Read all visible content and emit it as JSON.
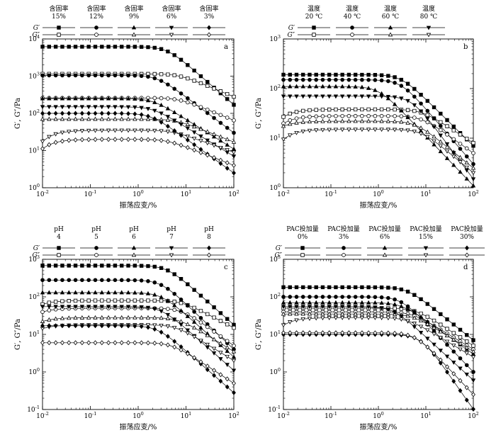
{
  "chart_data": [
    {
      "panel": "a",
      "type": "line",
      "xlabel": "振荡应变/%",
      "ylabel": "G′, G″/Pa",
      "x_scale": "log",
      "y_scale": "log",
      "xlim": [
        0.01,
        100
      ],
      "ylim": [
        1,
        10000
      ],
      "x_ticks": [
        0.01,
        0.1,
        1,
        10,
        100
      ],
      "y_ticks": [
        1,
        10,
        100,
        1000,
        10000
      ],
      "legend": {
        "position": "top",
        "row_labels": [
          "G′",
          "G″"
        ],
        "columns": [
          {
            "line1": "含固率",
            "line2": "15%"
          },
          {
            "line1": "含固率",
            "line2": "12%"
          },
          {
            "line1": "含固率",
            "line2": "9%"
          },
          {
            "line1": "含固率",
            "line2": "6%"
          },
          {
            "line1": "含固率",
            "line2": "3%"
          }
        ]
      },
      "series": [
        {
          "modulus": "G′",
          "marker": "square",
          "filled": true,
          "plateau": 6200,
          "end": 170,
          "gamma_c": 4,
          "slope": 0.6,
          "init": 0
        },
        {
          "modulus": "G″",
          "marker": "square",
          "filled": false,
          "plateau": 1150,
          "end": 280,
          "gamma_c": 7,
          "slope": 0.35,
          "init": 0
        },
        {
          "modulus": "G′",
          "marker": "circle",
          "filled": true,
          "plateau": 1050,
          "end": 30,
          "gamma_c": 2.5,
          "slope": 0.55,
          "init": 0
        },
        {
          "modulus": "G″",
          "marker": "circle",
          "filled": false,
          "plateau": 260,
          "end": 65,
          "gamma_c": 7,
          "slope": 0.35,
          "init": 0
        },
        {
          "modulus": "G′",
          "marker": "triangle",
          "filled": true,
          "plateau": 250,
          "end": 11,
          "gamma_c": 2,
          "slope": 0.55,
          "init": 0
        },
        {
          "modulus": "G″",
          "marker": "triangle",
          "filled": false,
          "plateau": 70,
          "end": 17,
          "gamma_c": 6,
          "slope": 0.35,
          "init": 0
        },
        {
          "modulus": "G′",
          "marker": "triangle-down",
          "filled": true,
          "plateau": 150,
          "end": 7,
          "gamma_c": 2,
          "slope": 0.55,
          "init": 0
        },
        {
          "modulus": "G″",
          "marker": "triangle-down",
          "filled": false,
          "plateau": 35,
          "end": 9,
          "gamma_c": 5,
          "slope": 0.35,
          "init": -0.3
        },
        {
          "modulus": "G′",
          "marker": "diamond",
          "filled": true,
          "plateau": 100,
          "end": 2.5,
          "gamma_c": 1.8,
          "slope": 0.6,
          "init": 0
        },
        {
          "modulus": "G″",
          "marker": "diamond",
          "filled": false,
          "plateau": 20,
          "end": 4,
          "gamma_c": 4,
          "slope": 0.4,
          "init": -0.25
        }
      ]
    },
    {
      "panel": "b",
      "type": "line",
      "xlabel": "振荡应变/%",
      "ylabel": "G′, G″/Pa",
      "x_scale": "log",
      "y_scale": "log",
      "xlim": [
        0.01,
        100
      ],
      "ylim": [
        1,
        1000
      ],
      "x_ticks": [
        0.01,
        0.1,
        1,
        10,
        100
      ],
      "y_ticks": [
        1,
        10,
        100,
        1000
      ],
      "legend": {
        "position": "top",
        "row_labels": [
          "G′",
          "G″"
        ],
        "columns": [
          {
            "line1": "温度",
            "line2": "20 ℃"
          },
          {
            "line1": "温度",
            "line2": "40 ℃"
          },
          {
            "line1": "温度",
            "line2": "60 ℃"
          },
          {
            "line1": "温度",
            "line2": "80 ℃"
          }
        ]
      },
      "series": [
        {
          "modulus": "G′",
          "marker": "square",
          "filled": true,
          "plateau": 190,
          "end": 7,
          "gamma_c": 3,
          "slope": 0.8,
          "init": 0
        },
        {
          "modulus": "G″",
          "marker": "square",
          "filled": false,
          "plateau": 38,
          "end": 8,
          "gamma_c": 8,
          "slope": 0.5,
          "init": -0.15
        },
        {
          "modulus": "G′",
          "marker": "circle",
          "filled": true,
          "plateau": 150,
          "end": 3,
          "gamma_c": 3,
          "slope": 0.9,
          "init": 0
        },
        {
          "modulus": "G″",
          "marker": "circle",
          "filled": false,
          "plateau": 28,
          "end": 5,
          "gamma_c": 8,
          "slope": 0.5,
          "init": -0.15
        },
        {
          "modulus": "G′",
          "marker": "triangle",
          "filled": true,
          "plateau": 110,
          "end": 1.1,
          "gamma_c": 1,
          "slope": 1.0,
          "init": 0
        },
        {
          "modulus": "G″",
          "marker": "triangle",
          "filled": false,
          "plateau": 22,
          "end": 2.5,
          "gamma_c": 6,
          "slope": 0.5,
          "init": -0.1
        },
        {
          "modulus": "G′",
          "marker": "triangle-down",
          "filled": true,
          "plateau": 70,
          "end": 1.5,
          "gamma_c": 5,
          "slope": 0.9,
          "init": 0
        },
        {
          "modulus": "G″",
          "marker": "triangle-down",
          "filled": false,
          "plateau": 15,
          "end": 2,
          "gamma_c": 8,
          "slope": 0.5,
          "init": -0.2
        }
      ]
    },
    {
      "panel": "c",
      "type": "line",
      "xlabel": "振荡应变/%",
      "ylabel": "G′, G″/Pa",
      "x_scale": "log",
      "y_scale": "log",
      "xlim": [
        0.01,
        100
      ],
      "ylim": [
        0.1,
        1000
      ],
      "x_ticks": [
        0.01,
        0.1,
        1,
        10,
        100
      ],
      "y_ticks": [
        0.1,
        1,
        10,
        100,
        1000
      ],
      "legend": {
        "position": "top",
        "row_labels": [
          "G′",
          "G″"
        ],
        "columns": [
          {
            "line1": "pH",
            "line2": "4"
          },
          {
            "line1": "pH",
            "line2": "5"
          },
          {
            "line1": "pH",
            "line2": "6"
          },
          {
            "line1": "pH",
            "line2": "7"
          },
          {
            "line1": "pH",
            "line2": "8"
          }
        ]
      },
      "series": [
        {
          "modulus": "G′",
          "marker": "square",
          "filled": true,
          "plateau": 680,
          "end": 18,
          "gamma_c": 4,
          "slope": 0.65,
          "init": 0
        },
        {
          "modulus": "G″",
          "marker": "square",
          "filled": false,
          "plateau": 80,
          "end": 15,
          "gamma_c": 8,
          "slope": 0.5,
          "init": -0.1
        },
        {
          "modulus": "G′",
          "marker": "circle",
          "filled": true,
          "plateau": 280,
          "end": 4,
          "gamma_c": 3,
          "slope": 0.75,
          "init": 0
        },
        {
          "modulus": "G″",
          "marker": "circle",
          "filled": false,
          "plateau": 50,
          "end": 5,
          "gamma_c": 8,
          "slope": 0.5,
          "init": -0.1
        },
        {
          "modulus": "G′",
          "marker": "triangle",
          "filled": true,
          "plateau": 130,
          "end": 2.5,
          "gamma_c": 3,
          "slope": 0.75,
          "init": 0
        },
        {
          "modulus": "G″",
          "marker": "triangle",
          "filled": false,
          "plateau": 28,
          "end": 3.5,
          "gamma_c": 7,
          "slope": 0.5,
          "init": -0.1
        },
        {
          "modulus": "G′",
          "marker": "triangle-down",
          "filled": true,
          "plateau": 55,
          "end": 1.1,
          "gamma_c": 3,
          "slope": 0.75,
          "init": 0
        },
        {
          "modulus": "G″",
          "marker": "triangle-down",
          "filled": false,
          "plateau": 18,
          "end": 2,
          "gamma_c": 6,
          "slope": 0.5,
          "init": -0.1
        },
        {
          "modulus": "G′",
          "marker": "diamond",
          "filled": true,
          "plateau": 17,
          "end": 0.28,
          "gamma_c": 2.5,
          "slope": 0.8,
          "init": 0
        },
        {
          "modulus": "G″",
          "marker": "diamond",
          "filled": false,
          "plateau": 6,
          "end": 0.5,
          "gamma_c": 5,
          "slope": 0.55,
          "init": 0
        }
      ]
    },
    {
      "panel": "d",
      "type": "line",
      "xlabel": "振荡应变/%",
      "ylabel": "G′, G″/Pa",
      "x_scale": "log",
      "y_scale": "log",
      "xlim": [
        0.01,
        100
      ],
      "ylim": [
        0.1,
        1000
      ],
      "x_ticks": [
        0.01,
        0.1,
        1,
        10,
        100
      ],
      "y_ticks": [
        0.1,
        1,
        10,
        100,
        1000
      ],
      "legend": {
        "position": "top",
        "row_labels": [
          "G′",
          "G″"
        ],
        "columns": [
          {
            "line1": "PAC投加量",
            "line2": "0%"
          },
          {
            "line1": "PAC投加量",
            "line2": "3%"
          },
          {
            "line1": "PAC投加量",
            "line2": "6%"
          },
          {
            "line1": "PAC投加量",
            "line2": "15%"
          },
          {
            "line1": "PAC投加量",
            "line2": "30%"
          }
        ]
      },
      "series": [
        {
          "modulus": "G′",
          "marker": "square",
          "filled": true,
          "plateau": 180,
          "end": 7,
          "gamma_c": 4,
          "slope": 0.7,
          "init": 0
        },
        {
          "modulus": "G″",
          "marker": "square",
          "filled": false,
          "plateau": 50,
          "end": 5,
          "gamma_c": 6,
          "slope": 0.55,
          "init": 0
        },
        {
          "modulus": "G′",
          "marker": "circle",
          "filled": true,
          "plateau": 100,
          "end": 1,
          "gamma_c": 3,
          "slope": 0.9,
          "init": 0
        },
        {
          "modulus": "G″",
          "marker": "circle",
          "filled": false,
          "plateau": 40,
          "end": 4,
          "gamma_c": 5,
          "slope": 0.55,
          "init": 0
        },
        {
          "modulus": "G′",
          "marker": "triangle",
          "filled": true,
          "plateau": 70,
          "end": 3,
          "gamma_c": 3,
          "slope": 0.75,
          "init": 0
        },
        {
          "modulus": "G″",
          "marker": "triangle",
          "filled": false,
          "plateau": 35,
          "end": 3.5,
          "gamma_c": 5,
          "slope": 0.55,
          "init": 0
        },
        {
          "modulus": "G′",
          "marker": "triangle-down",
          "filled": true,
          "plateau": 55,
          "end": 0.6,
          "gamma_c": 2,
          "slope": 0.9,
          "init": 0
        },
        {
          "modulus": "G″",
          "marker": "triangle-down",
          "filled": false,
          "plateau": 28,
          "end": 2.5,
          "gamma_c": 4,
          "slope": 0.55,
          "init": -0.2
        },
        {
          "modulus": "G′",
          "marker": "diamond",
          "filled": true,
          "plateau": 10,
          "end": 0.1,
          "gamma_c": 8,
          "slope": 1.6,
          "init": 0
        },
        {
          "modulus": "G″",
          "marker": "diamond",
          "filled": false,
          "plateau": 11,
          "end": 0.25,
          "gamma_c": 6,
          "slope": 1.2,
          "init": 0
        }
      ]
    }
  ]
}
